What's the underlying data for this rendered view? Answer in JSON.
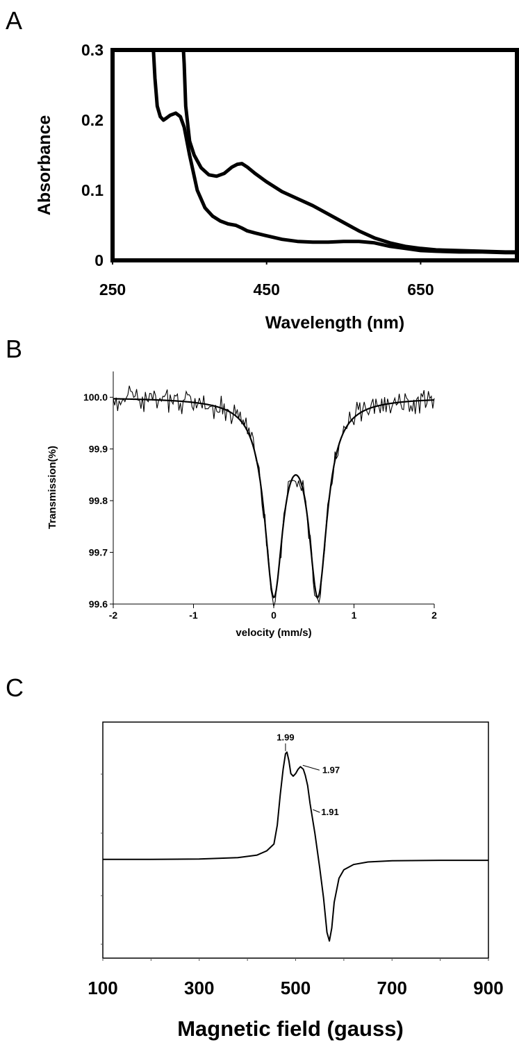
{
  "panels": [
    "A",
    "B",
    "C"
  ],
  "chart_data": [
    {
      "type": "line",
      "panel": "A",
      "title": "",
      "xlabel": "Wavelength (nm)",
      "ylabel": "Absorbance",
      "xlim": [
        250,
        775
      ],
      "ylim": [
        0,
        0.3
      ],
      "x_ticks": [
        "250",
        "450",
        "650"
      ],
      "y_ticks": [
        "0",
        "0.1",
        "0.2",
        "0.3"
      ],
      "grid": false,
      "series": [
        {
          "x": [
            303,
            305,
            308,
            312,
            316,
            320,
            325,
            332,
            338,
            343,
            350,
            360,
            370,
            380,
            390,
            400,
            410,
            418,
            425,
            435,
            450,
            470,
            490,
            510,
            530,
            550,
            570,
            590,
            610,
            630,
            650,
            670,
            700,
            730,
            760,
            775
          ],
          "y": [
            0.3,
            0.26,
            0.22,
            0.205,
            0.2,
            0.203,
            0.207,
            0.21,
            0.205,
            0.19,
            0.15,
            0.1,
            0.075,
            0.063,
            0.056,
            0.052,
            0.05,
            0.046,
            0.042,
            0.039,
            0.035,
            0.03,
            0.027,
            0.026,
            0.026,
            0.027,
            0.027,
            0.025,
            0.02,
            0.017,
            0.014,
            0.013,
            0.012,
            0.012,
            0.011,
            0.011
          ]
        },
        {
          "x": [
            342,
            343,
            345,
            350,
            356,
            365,
            375,
            385,
            395,
            405,
            412,
            418,
            425,
            435,
            450,
            470,
            490,
            510,
            530,
            550,
            570,
            590,
            610,
            630,
            650,
            670,
            700,
            730,
            760,
            775
          ],
          "y": [
            0.3,
            0.28,
            0.22,
            0.17,
            0.15,
            0.132,
            0.122,
            0.12,
            0.124,
            0.133,
            0.137,
            0.138,
            0.133,
            0.124,
            0.112,
            0.098,
            0.088,
            0.078,
            0.066,
            0.054,
            0.042,
            0.032,
            0.025,
            0.02,
            0.017,
            0.015,
            0.014,
            0.013,
            0.012,
            0.012
          ]
        }
      ]
    },
    {
      "type": "line",
      "panel": "B",
      "title": "",
      "xlabel": "velocity (mm/s)",
      "ylabel": "Transmission(%)",
      "xlim": [
        -2,
        2
      ],
      "ylim": [
        99.6,
        100.05
      ],
      "x_ticks": [
        "-2",
        "-1",
        "0",
        "1",
        "2"
      ],
      "y_ticks": [
        "99.6",
        "99.7",
        "99.8",
        "99.9",
        "100.0"
      ],
      "grid": false,
      "doublet": {
        "baseline": 100.0,
        "centers": [
          0.0,
          0.55
        ],
        "depth": 0.365,
        "gamma": 0.14
      },
      "data_noise_amplitude": 0.03
    },
    {
      "type": "line",
      "panel": "C",
      "title": "",
      "xlabel": "Magnetic field (gauss)",
      "ylabel": "",
      "xlim": [
        100,
        900
      ],
      "x_ticks": [
        "100",
        "300",
        "500",
        "700",
        "900"
      ],
      "grid": false,
      "series": [
        {
          "x": [
            100,
            200,
            300,
            380,
            420,
            440,
            455,
            462,
            468,
            474,
            479,
            482,
            486,
            490,
            495,
            500,
            505,
            510,
            516,
            520,
            525,
            530,
            540,
            550,
            558,
            565,
            570,
            575,
            580,
            590,
            600,
            620,
            650,
            700,
            800,
            900
          ],
          "y": [
            0.0,
            0.0,
            0.005,
            0.02,
            0.05,
            0.1,
            0.18,
            0.4,
            0.75,
            1.05,
            1.23,
            1.25,
            1.15,
            1.0,
            0.97,
            1.0,
            1.05,
            1.08,
            1.05,
            0.98,
            0.86,
            0.65,
            0.3,
            -0.1,
            -0.45,
            -0.85,
            -0.95,
            -0.8,
            -0.5,
            -0.22,
            -0.12,
            -0.06,
            -0.03,
            -0.015,
            -0.01,
            -0.01
          ]
        }
      ],
      "annotations": [
        {
          "text": "1.99",
          "x": 479,
          "y": 1.23
        },
        {
          "text": "1.97",
          "x": 512,
          "y": 1.08
        },
        {
          "text": "1.91",
          "x": 533,
          "y": 0.58
        }
      ]
    }
  ]
}
